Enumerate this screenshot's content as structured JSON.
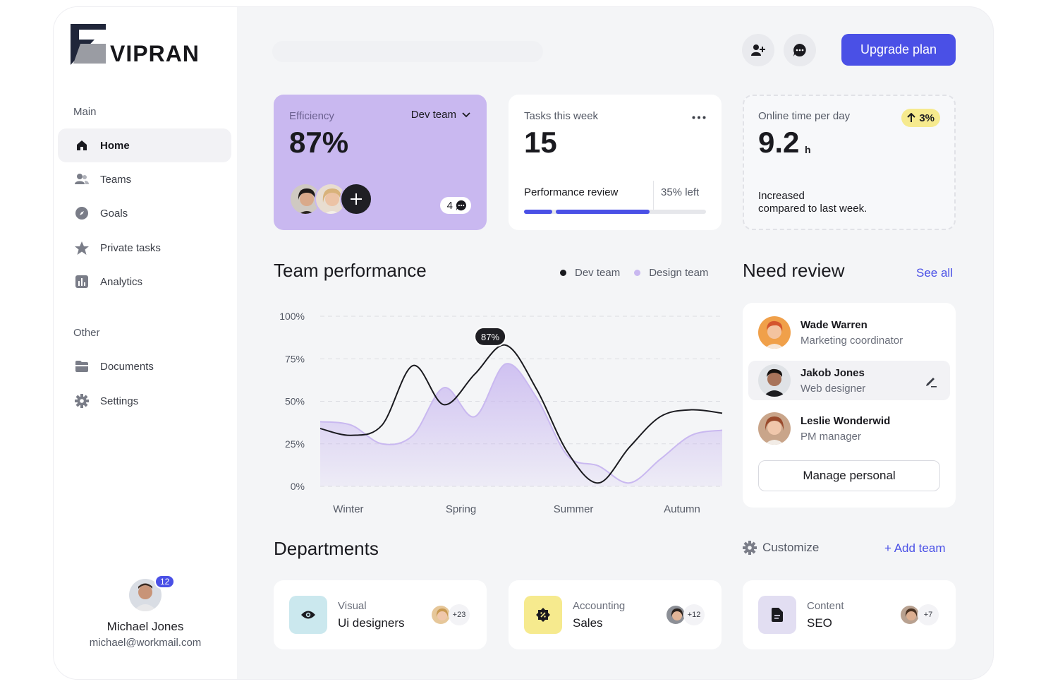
{
  "brand": {
    "name": "VIPRAN"
  },
  "sidebar": {
    "main_label": "Main",
    "main_items": [
      {
        "label": "Home",
        "icon": "home-icon"
      },
      {
        "label": "Teams",
        "icon": "users-icon"
      },
      {
        "label": "Goals",
        "icon": "compass-icon"
      },
      {
        "label": "Private tasks",
        "icon": "star-icon"
      },
      {
        "label": "Analytics",
        "icon": "chart-icon"
      }
    ],
    "other_label": "Other",
    "other_items": [
      {
        "label": "Documents",
        "icon": "folder-icon"
      },
      {
        "label": "Settings",
        "icon": "gear-icon"
      }
    ]
  },
  "profile": {
    "name": "Michael Jones",
    "email": "michael@workmail.com",
    "notifications": "12"
  },
  "topbar": {
    "upgrade_label": "Upgrade plan"
  },
  "cards": {
    "efficiency": {
      "label": "Efficiency",
      "team": "Dev team",
      "value": "87%",
      "comments": "4"
    },
    "tasks": {
      "label": "Tasks this week",
      "value": "15",
      "progress_label": "Performance review",
      "left_label": "35% left",
      "progress": 0.65
    },
    "online": {
      "label": "Online time per day",
      "value": "9.2",
      "unit": "h",
      "change": "3%",
      "note_line1": "Increased",
      "note_line2": "compared to last week."
    }
  },
  "performance": {
    "title": "Team performance",
    "legend": [
      "Dev team",
      "Design team"
    ],
    "tooltip": "87%"
  },
  "chart_data": {
    "type": "line",
    "categories": [
      "Winter",
      "Spring",
      "Summer",
      "Autumn"
    ],
    "y_ticks": [
      "100%",
      "75%",
      "50%",
      "25%",
      "0%"
    ],
    "ylim": [
      0,
      100
    ],
    "x": [
      0,
      0.25,
      0.5,
      0.75,
      1,
      1.25,
      1.5,
      1.75,
      2,
      2.25,
      2.5,
      2.75,
      3,
      3.25
    ],
    "series": [
      {
        "name": "Dev team",
        "values": [
          34,
          30,
          36,
          71,
          48,
          66,
          83,
          57,
          20,
          2,
          23,
          41,
          45,
          43
        ]
      },
      {
        "name": "Design team",
        "values": [
          38,
          36,
          25,
          30,
          58,
          41,
          72,
          52,
          18,
          12,
          2,
          16,
          30,
          33
        ]
      }
    ],
    "colors": {
      "dev": "#1a1a1f",
      "design": "#c9b8f0"
    },
    "grid": true,
    "legend_position": "top-right"
  },
  "review": {
    "title": "Need review",
    "see_all": "See all",
    "people": [
      {
        "name": "Wade Warren",
        "role": "Marketing coordinator"
      },
      {
        "name": "Jakob Jones",
        "role": "Web designer"
      },
      {
        "name": "Leslie Wonderwid",
        "role": "PM manager"
      }
    ],
    "manage_label": "Manage personal"
  },
  "departments": {
    "title": "Departments",
    "customize": "Customize",
    "add_team": "+ Add team",
    "items": [
      {
        "category": "Visual",
        "name": "Ui designers",
        "count": "+23",
        "icon": "eye-icon",
        "color": "#cbe8ee"
      },
      {
        "category": "Accounting",
        "name": "Sales",
        "count": "+12",
        "icon": "discount-icon",
        "color": "#f6ea8e"
      },
      {
        "category": "Content",
        "name": "SEO",
        "count": "+7",
        "icon": "document-icon",
        "color": "#e2def2"
      }
    ]
  }
}
